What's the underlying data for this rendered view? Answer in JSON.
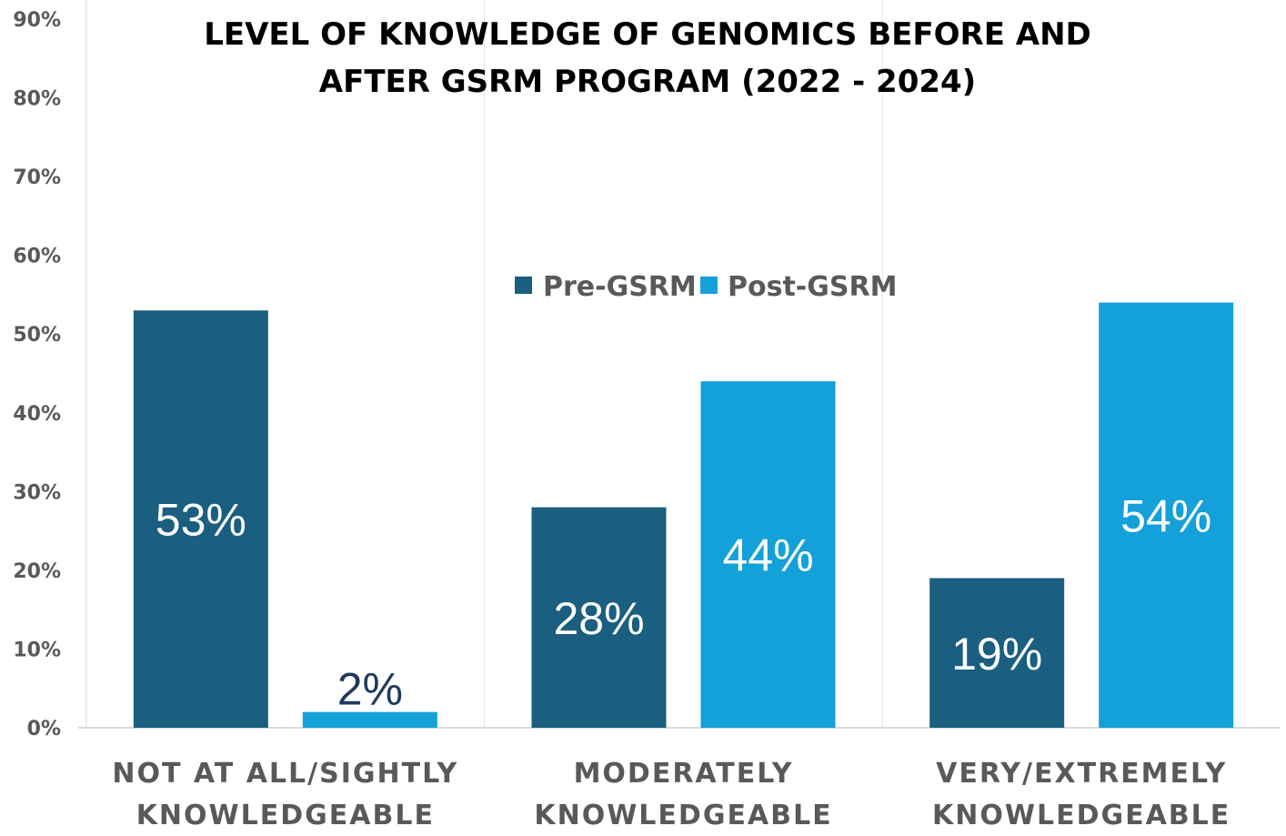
{
  "chart_data": {
    "type": "bar",
    "title": "LEVEL OF KNOWLEDGE OF GENOMICS BEFORE AND AFTER GSRM PROGRAM (2022 - 2024)",
    "title_lines": [
      "LEVEL OF KNOWLEDGE OF GENOMICS BEFORE AND",
      "AFTER GSRM PROGRAM (2022 - 2024)"
    ],
    "categories": [
      [
        "NOT AT ALL/SIGHTLY",
        "KNOWLEDGEABLE"
      ],
      [
        "MODERATELY",
        "KNOWLEDGEABLE"
      ],
      [
        "VERY/EXTREMELY",
        "KNOWLEDGEABLE"
      ]
    ],
    "series": [
      {
        "name": "Pre-GSRM",
        "color": "#1a5e80",
        "values": [
          53,
          28,
          19
        ],
        "labels": [
          "53%",
          "28%",
          "19%"
        ],
        "label_color": "#ffffff"
      },
      {
        "name": "Post-GSRM",
        "color": "#14a0d8",
        "values": [
          2,
          44,
          54
        ],
        "labels": [
          "2%",
          "44%",
          "54%"
        ],
        "label_color": "#ffffff",
        "outside_label_color": "#1f3a5f"
      }
    ],
    "ylim": [
      0,
      90
    ],
    "yticks": [
      0,
      10,
      20,
      30,
      40,
      50,
      60,
      70,
      80,
      90
    ],
    "ytick_labels": [
      "0%",
      "10%",
      "20%",
      "30%",
      "40%",
      "50%",
      "60%",
      "70%",
      "80%",
      "90%"
    ],
    "xlabel": "",
    "ylabel": "",
    "legend_position": "center",
    "grid": "vertical separators between categories"
  }
}
